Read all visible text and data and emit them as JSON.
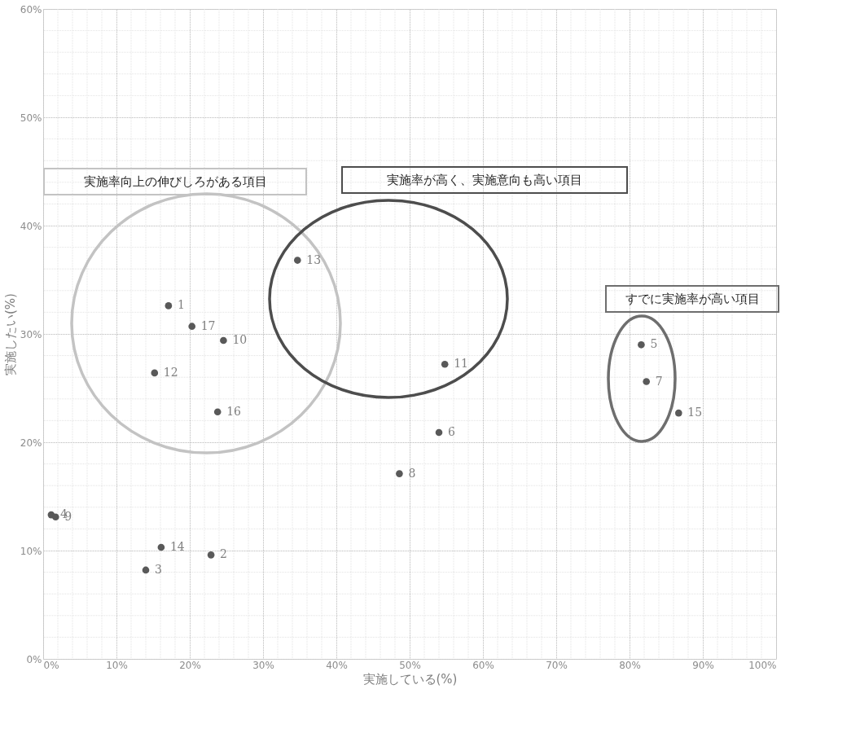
{
  "chart_data": {
    "type": "scatter",
    "xlabel": "実施している(%)",
    "ylabel": "実施したい(%)",
    "xlim": [
      0,
      100
    ],
    "ylim": [
      0,
      60
    ],
    "xticks": [
      {
        "value": 0,
        "label": "0%"
      },
      {
        "value": 10,
        "label": "10%"
      },
      {
        "value": 20,
        "label": "20%"
      },
      {
        "value": 30,
        "label": "30%"
      },
      {
        "value": 40,
        "label": "40%"
      },
      {
        "value": 50,
        "label": "50%"
      },
      {
        "value": 60,
        "label": "60%"
      },
      {
        "value": 70,
        "label": "70%"
      },
      {
        "value": 80,
        "label": "80%"
      },
      {
        "value": 90,
        "label": "90%"
      },
      {
        "value": 100,
        "label": "100%"
      }
    ],
    "yticks": [
      {
        "value": 0,
        "label": "0%"
      },
      {
        "value": 10,
        "label": "10%"
      },
      {
        "value": 20,
        "label": "20%"
      },
      {
        "value": 30,
        "label": "30%"
      },
      {
        "value": 40,
        "label": "40%"
      },
      {
        "value": 50,
        "label": "50%"
      },
      {
        "value": 60,
        "label": "60%"
      }
    ],
    "grid": true,
    "legend": false,
    "marker": "circle",
    "series": [
      {
        "name": "1",
        "color": "#595959",
        "x": [
          17.1
        ],
        "values": [
          32.6
        ]
      },
      {
        "name": "2",
        "color": "#595959",
        "x": [
          22.9
        ],
        "values": [
          9.6
        ]
      },
      {
        "name": "3",
        "color": "#595959",
        "x": [
          14.0
        ],
        "values": [
          8.2
        ]
      },
      {
        "name": "4",
        "color": "#595959",
        "x": [
          1.1
        ],
        "values": [
          13.3
        ]
      },
      {
        "name": "5",
        "color": "#595959",
        "x": [
          81.6
        ],
        "values": [
          29.0
        ]
      },
      {
        "name": "6",
        "color": "#595959",
        "x": [
          54.0
        ],
        "values": [
          20.9
        ]
      },
      {
        "name": "7",
        "color": "#595959",
        "x": [
          82.3
        ],
        "values": [
          25.6
        ]
      },
      {
        "name": "8",
        "color": "#595959",
        "x": [
          48.6
        ],
        "values": [
          17.1
        ]
      },
      {
        "name": "9",
        "color": "#595959",
        "x": [
          1.7
        ],
        "values": [
          13.1
        ]
      },
      {
        "name": "10",
        "color": "#595959",
        "x": [
          24.6
        ],
        "values": [
          29.4
        ]
      },
      {
        "name": "11",
        "color": "#595959",
        "x": [
          54.8
        ],
        "values": [
          27.2
        ]
      },
      {
        "name": "12",
        "color": "#595959",
        "x": [
          15.2
        ],
        "values": [
          26.4
        ]
      },
      {
        "name": "13",
        "color": "#595959",
        "x": [
          34.7
        ],
        "values": [
          36.8
        ]
      },
      {
        "name": "14",
        "color": "#595959",
        "x": [
          16.1
        ],
        "values": [
          10.3
        ]
      },
      {
        "name": "15",
        "color": "#595959",
        "x": [
          86.7
        ],
        "values": [
          22.7
        ]
      },
      {
        "name": "16",
        "color": "#595959",
        "x": [
          23.8
        ],
        "values": [
          22.8
        ]
      },
      {
        "name": "17",
        "color": "#595959",
        "x": [
          20.3
        ],
        "values": [
          30.7
        ]
      }
    ],
    "annotations": [
      "実施率向上の伸びしろがある項目",
      "実施率が高く、実施意向も高い項目",
      "すでに実施率が高い項目"
    ]
  }
}
